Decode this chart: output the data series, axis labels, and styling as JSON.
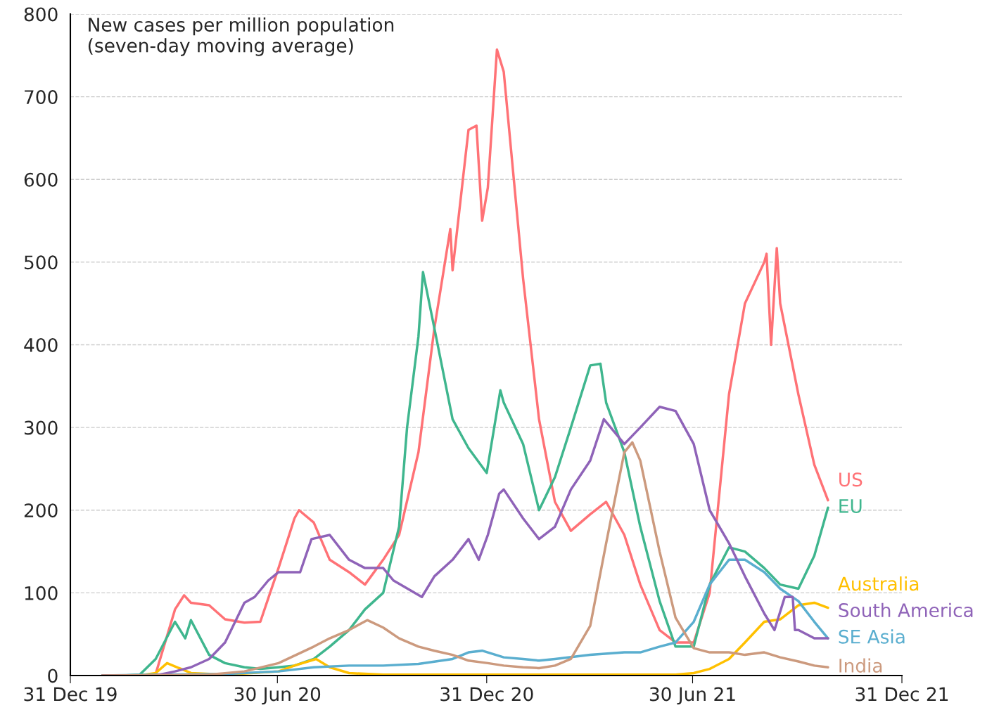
{
  "chart_data": {
    "type": "line",
    "title": "New cases per million population\n(seven-day moving average)",
    "xlim": [
      "2019-12-31",
      "2021-12-31"
    ],
    "xticks": [
      {
        "value": "2019-12-31",
        "label": "31 Dec 19"
      },
      {
        "value": "2020-06-30",
        "label": "30 Jun 20"
      },
      {
        "value": "2020-12-31",
        "label": "31 Dec 20"
      },
      {
        "value": "2021-06-30",
        "label": "30 Jun 21"
      },
      {
        "value": "2021-12-31",
        "label": "31 Dec 21"
      }
    ],
    "ylim": [
      0,
      800
    ],
    "yticks": [
      0,
      100,
      200,
      300,
      400,
      500,
      600,
      700,
      800
    ],
    "grid": "y",
    "legend": false,
    "series": [
      {
        "name": "US",
        "color": "#ff7276",
        "x": [
          "2020-03-10",
          "2020-03-15",
          "2020-04-01",
          "2020-04-09",
          "2020-04-15",
          "2020-05-01",
          "2020-05-15",
          "2020-06-01",
          "2020-06-15",
          "2020-07-01",
          "2020-07-15",
          "2020-07-19",
          "2020-08-01",
          "2020-08-15",
          "2020-09-01",
          "2020-09-15",
          "2020-10-01",
          "2020-10-15",
          "2020-11-01",
          "2020-11-15",
          "2020-11-29",
          "2020-12-01",
          "2020-12-15",
          "2020-12-22",
          "2020-12-27",
          "2021-01-01",
          "2021-01-09",
          "2021-01-15",
          "2021-02-01",
          "2021-02-15",
          "2021-03-01",
          "2021-03-15",
          "2021-04-01",
          "2021-04-15",
          "2021-05-01",
          "2021-05-15",
          "2021-06-01",
          "2021-06-15",
          "2021-07-01",
          "2021-07-15",
          "2021-08-01",
          "2021-08-15",
          "2021-09-01",
          "2021-09-03",
          "2021-09-07",
          "2021-09-12",
          "2021-09-15",
          "2021-10-01",
          "2021-10-15",
          "2021-10-27"
        ],
        "values": [
          0,
          2,
          80,
          97,
          88,
          85,
          68,
          64,
          65,
          130,
          190,
          200,
          185,
          140,
          125,
          110,
          140,
          170,
          270,
          420,
          540,
          490,
          660,
          665,
          550,
          590,
          757,
          730,
          480,
          310,
          210,
          175,
          195,
          210,
          170,
          110,
          55,
          40,
          40,
          100,
          340,
          450,
          500,
          510,
          400,
          517,
          450,
          340,
          255,
          212
        ]
      },
      {
        "name": "EU",
        "color": "#3fb68e",
        "x": [
          "2020-01-28",
          "2020-02-15",
          "2020-03-01",
          "2020-03-15",
          "2020-04-01",
          "2020-04-10",
          "2020-04-15",
          "2020-05-01",
          "2020-05-15",
          "2020-06-01",
          "2020-06-15",
          "2020-07-01",
          "2020-07-15",
          "2020-08-01",
          "2020-08-15",
          "2020-09-01",
          "2020-09-15",
          "2020-10-01",
          "2020-10-15",
          "2020-10-22",
          "2020-11-01",
          "2020-11-05",
          "2020-11-15",
          "2020-12-01",
          "2020-12-15",
          "2020-12-31",
          "2021-01-12",
          "2021-01-15",
          "2021-02-01",
          "2021-02-15",
          "2021-03-01",
          "2021-03-15",
          "2021-04-01",
          "2021-04-10",
          "2021-04-15",
          "2021-05-01",
          "2021-05-15",
          "2021-06-01",
          "2021-06-15",
          "2021-07-01",
          "2021-07-15",
          "2021-08-01",
          "2021-08-15",
          "2021-09-01",
          "2021-09-15",
          "2021-10-01",
          "2021-10-15",
          "2021-10-27"
        ],
        "values": [
          0,
          0,
          1,
          20,
          65,
          45,
          67,
          25,
          15,
          10,
          8,
          10,
          12,
          20,
          35,
          55,
          80,
          100,
          180,
          300,
          410,
          488,
          420,
          310,
          275,
          245,
          345,
          330,
          280,
          200,
          240,
          300,
          375,
          377,
          330,
          270,
          180,
          90,
          35,
          35,
          110,
          155,
          150,
          130,
          110,
          105,
          145,
          203
        ]
      },
      {
        "name": "Australia",
        "color": "#ffc000",
        "x": [
          "2020-01-28",
          "2020-03-01",
          "2020-03-15",
          "2020-03-25",
          "2020-04-15",
          "2020-05-15",
          "2020-07-01",
          "2020-07-15",
          "2020-08-03",
          "2020-08-15",
          "2020-09-01",
          "2020-10-01",
          "2021-01-01",
          "2021-04-01",
          "2021-06-15",
          "2021-07-01",
          "2021-07-15",
          "2021-08-01",
          "2021-08-15",
          "2021-09-01",
          "2021-09-15",
          "2021-10-01",
          "2021-10-15",
          "2021-10-27"
        ],
        "values": [
          0,
          0,
          3,
          15,
          3,
          1,
          5,
          12,
          20,
          10,
          3,
          1,
          1,
          1,
          1,
          3,
          8,
          20,
          40,
          65,
          68,
          85,
          88,
          82
        ]
      },
      {
        "name": "SE Asia",
        "color": "#5aaecf",
        "x": [
          "2020-01-28",
          "2020-03-15",
          "2020-05-15",
          "2020-07-01",
          "2020-08-01",
          "2020-09-01",
          "2020-10-01",
          "2020-11-01",
          "2020-12-01",
          "2020-12-15",
          "2020-12-27",
          "2021-01-15",
          "2021-02-01",
          "2021-02-15",
          "2021-03-01",
          "2021-04-01",
          "2021-05-01",
          "2021-05-15",
          "2021-06-01",
          "2021-06-15",
          "2021-07-01",
          "2021-07-15",
          "2021-08-01",
          "2021-08-15",
          "2021-09-01",
          "2021-09-15",
          "2021-10-01",
          "2021-10-15",
          "2021-10-27"
        ],
        "values": [
          0,
          1,
          2,
          5,
          10,
          12,
          12,
          14,
          20,
          28,
          30,
          22,
          20,
          18,
          20,
          25,
          28,
          28,
          35,
          40,
          65,
          110,
          140,
          140,
          125,
          105,
          90,
          65,
          45
        ]
      },
      {
        "name": "South America",
        "color": "#8f63b8",
        "x": [
          "2020-01-28",
          "2020-03-15",
          "2020-04-01",
          "2020-04-15",
          "2020-05-01",
          "2020-05-15",
          "2020-06-01",
          "2020-06-10",
          "2020-06-22",
          "2020-07-01",
          "2020-07-20",
          "2020-07-30",
          "2020-08-15",
          "2020-09-01",
          "2020-09-15",
          "2020-10-01",
          "2020-10-10",
          "2020-11-04",
          "2020-11-15",
          "2020-12-01",
          "2020-12-15",
          "2020-12-24",
          "2021-01-01",
          "2021-01-11",
          "2021-01-15",
          "2021-02-01",
          "2021-02-15",
          "2021-03-01",
          "2021-03-15",
          "2021-04-01",
          "2021-04-13",
          "2021-05-01",
          "2021-05-15",
          "2021-06-01",
          "2021-06-15",
          "2021-07-01",
          "2021-07-15",
          "2021-08-01",
          "2021-08-15",
          "2021-09-01",
          "2021-09-10",
          "2021-09-19",
          "2021-09-26",
          "2021-09-28",
          "2021-10-01",
          "2021-10-15",
          "2021-10-27"
        ],
        "values": [
          0,
          0,
          5,
          10,
          20,
          40,
          88,
          95,
          115,
          125,
          125,
          165,
          170,
          140,
          130,
          130,
          115,
          95,
          120,
          140,
          165,
          140,
          170,
          220,
          225,
          190,
          165,
          180,
          225,
          260,
          310,
          280,
          300,
          325,
          320,
          280,
          200,
          160,
          120,
          75,
          55,
          95,
          95,
          55,
          55,
          45,
          45
        ]
      },
      {
        "name": "India",
        "color": "#cc9a7e",
        "x": [
          "2020-01-28",
          "2020-05-01",
          "2020-06-01",
          "2020-07-01",
          "2020-08-01",
          "2020-08-15",
          "2020-09-01",
          "2020-09-17",
          "2020-10-01",
          "2020-10-15",
          "2020-11-01",
          "2020-11-15",
          "2020-12-01",
          "2020-12-15",
          "2021-01-01",
          "2021-01-15",
          "2021-02-01",
          "2021-02-15",
          "2021-03-01",
          "2021-03-15",
          "2021-04-01",
          "2021-04-15",
          "2021-05-01",
          "2021-05-08",
          "2021-05-15",
          "2021-06-01",
          "2021-06-15",
          "2021-07-01",
          "2021-07-15",
          "2021-08-01",
          "2021-08-15",
          "2021-09-01",
          "2021-09-15",
          "2021-10-01",
          "2021-10-15",
          "2021-10-27"
        ],
        "values": [
          0,
          1,
          5,
          15,
          35,
          45,
          55,
          67,
          58,
          45,
          35,
          30,
          25,
          18,
          15,
          12,
          10,
          9,
          12,
          20,
          60,
          160,
          270,
          282,
          260,
          150,
          70,
          33,
          28,
          28,
          25,
          28,
          22,
          17,
          12,
          10
        ]
      }
    ]
  }
}
